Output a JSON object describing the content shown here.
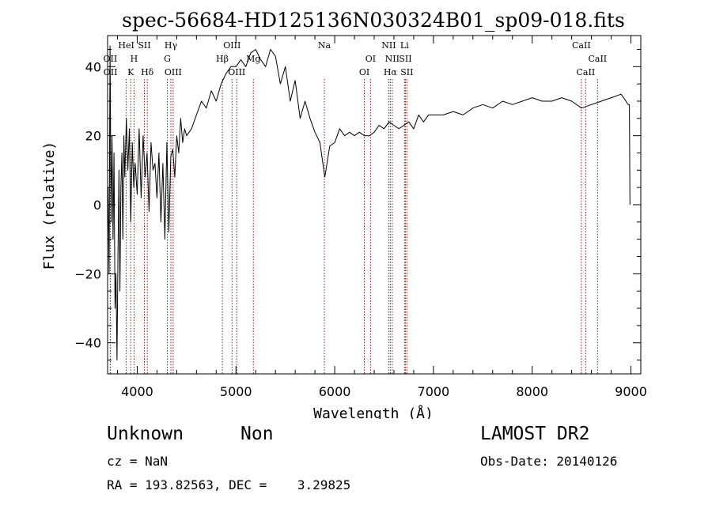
{
  "chart_data": {
    "type": "line",
    "title": "spec-56684-HD125136N030324B01_sp09-018.fits",
    "xlabel": "Wavelength (Å)",
    "ylabel": "Flux (relative)",
    "xlim": [
      3700,
      9100
    ],
    "ylim": [
      -49,
      49
    ],
    "xticks": [
      4000,
      5000,
      6000,
      7000,
      8000,
      9000
    ],
    "yticks": [
      -40,
      -20,
      0,
      20,
      40
    ],
    "grid": false,
    "line_color": "#000000",
    "marker_color": "#8b1a1a",
    "series": [
      {
        "x": [
          3705,
          3715,
          3725,
          3735,
          3745,
          3755,
          3765,
          3775,
          3785,
          3795,
          3805,
          3815,
          3825,
          3835,
          3845,
          3855,
          3865,
          3875,
          3890,
          3905,
          3920,
          3935,
          3950,
          3965,
          3980,
          4000,
          4020,
          4040,
          4060,
          4080,
          4100,
          4120,
          4140,
          4160,
          4180,
          4200,
          4220,
          4240,
          4260,
          4280,
          4300,
          4320,
          4340,
          4360,
          4380,
          4400,
          4420,
          4440,
          4460,
          4480,
          4500,
          4550,
          4600,
          4650,
          4700,
          4750,
          4800,
          4850,
          4900,
          4950,
          5000,
          5050,
          5100,
          5150,
          5200,
          5250,
          5300,
          5350,
          5400,
          5450,
          5500,
          5550,
          5600,
          5650,
          5700,
          5750,
          5800,
          5850,
          5900,
          5950,
          6000,
          6050,
          6100,
          6150,
          6200,
          6250,
          6300,
          6350,
          6400,
          6450,
          6500,
          6550,
          6600,
          6650,
          6700,
          6750,
          6800,
          6850,
          6900,
          6950,
          7000,
          7100,
          7200,
          7300,
          7400,
          7500,
          7600,
          7700,
          7800,
          7900,
          8000,
          8100,
          8200,
          8300,
          8400,
          8500,
          8600,
          8700,
          8800,
          8900,
          8950,
          8970,
          8985,
          8990
        ],
        "y": [
          5,
          -20,
          46,
          -5,
          20,
          -10,
          15,
          -30,
          -20,
          -45,
          -15,
          10,
          -25,
          5,
          15,
          -10,
          20,
          8,
          25,
          10,
          22,
          -5,
          18,
          5,
          12,
          3,
          22,
          2,
          20,
          8,
          15,
          -2,
          18,
          10,
          12,
          2,
          15,
          -5,
          12,
          -10,
          18,
          -8,
          14,
          16,
          8,
          20,
          15,
          25,
          18,
          22,
          20,
          22,
          26,
          30,
          28,
          33,
          30,
          35,
          38,
          40,
          40,
          42,
          40,
          44,
          45,
          42,
          40,
          45,
          43,
          35,
          40,
          30,
          36,
          25,
          30,
          25,
          21,
          18,
          8,
          17,
          18,
          22,
          20,
          21,
          20,
          21,
          20,
          20,
          21,
          23,
          22,
          24,
          23,
          22,
          23,
          24,
          22,
          26,
          24,
          26,
          26,
          26,
          27,
          26,
          28,
          29,
          28,
          30,
          29,
          30,
          31,
          30,
          30,
          31,
          30,
          28,
          29,
          30,
          31,
          32,
          30,
          29,
          29,
          0
        ]
      }
    ],
    "line_markers": [
      {
        "label": "OII",
        "x": 3727,
        "row": 2
      },
      {
        "label": "OII",
        "x": 3729,
        "row": 3
      },
      {
        "label": "HeI",
        "x": 3889,
        "row": 1
      },
      {
        "label": "K",
        "x": 3934,
        "row": 3
      },
      {
        "label": "H",
        "x": 3968,
        "row": 2
      },
      {
        "label": "SII",
        "x": 4072,
        "row": 1
      },
      {
        "label": "Hδ",
        "x": 4102,
        "row": 3
      },
      {
        "label": "G",
        "x": 4305,
        "row": 2
      },
      {
        "label": "Hγ",
        "x": 4341,
        "row": 1
      },
      {
        "label": "OIII",
        "x": 4364,
        "row": 3
      },
      {
        "label": "Hβ",
        "x": 4862,
        "row": 2
      },
      {
        "label": "OIII",
        "x": 4960,
        "row": 1
      },
      {
        "label": "OIII",
        "x": 5008,
        "row": 3
      },
      {
        "label": "Mg",
        "x": 5176,
        "row": 2
      },
      {
        "label": "Na",
        "x": 5895,
        "row": 1
      },
      {
        "label": "OI",
        "x": 6300,
        "row": 3
      },
      {
        "label": "OI",
        "x": 6363,
        "row": 2
      },
      {
        "label": "NII",
        "x": 6548,
        "row": 1
      },
      {
        "label": "Hα",
        "x": 6563,
        "row": 3
      },
      {
        "label": "NII",
        "x": 6583,
        "row": 2
      },
      {
        "label": "Li",
        "x": 6707,
        "row": 1
      },
      {
        "label": "SII",
        "x": 6716,
        "row": 2
      },
      {
        "label": "SII",
        "x": 6731,
        "row": 3
      },
      {
        "label": "CaII",
        "x": 8498,
        "row": 1
      },
      {
        "label": "CaII",
        "x": 8542,
        "row": 3
      },
      {
        "label": "CaII",
        "x": 8662,
        "row": 2
      }
    ]
  },
  "info": {
    "object_type": "Unknown",
    "object_class": "Non",
    "cz": "cz = NaN",
    "ra_dec": "RA = 193.82563, DEC =    3.29825",
    "survey": "LAMOST DR2",
    "obs_date": "Obs-Date: 20140126"
  }
}
